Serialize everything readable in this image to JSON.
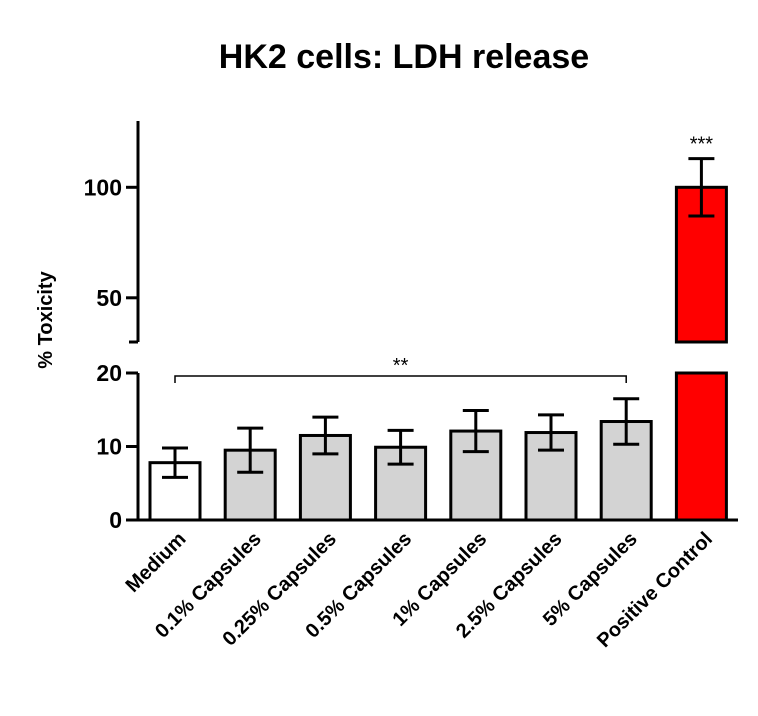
{
  "chart_data": {
    "type": "bar",
    "title": "HK2 cells: LDH release",
    "ylabel": "% Toxicity",
    "xlabel": "",
    "categories": [
      "Medium",
      "0.1% Capsules",
      "0.25% Capsules",
      "0.5% Capsules",
      "1% Capsules",
      "2.5% Capsules",
      "5% Capsules",
      "Positive Control"
    ],
    "values": [
      7.8,
      9.5,
      11.5,
      9.9,
      12.1,
      11.9,
      13.4,
      100
    ],
    "errors": [
      2.0,
      3.0,
      2.5,
      2.3,
      2.8,
      2.4,
      3.1,
      13
    ],
    "bar_colors": [
      "#ffffff",
      "#d3d3d3",
      "#d3d3d3",
      "#d3d3d3",
      "#d3d3d3",
      "#d3d3d3",
      "#d3d3d3",
      "#ff0000"
    ],
    "broken_y_axis": true,
    "y_lower_segment": {
      "range": [
        0,
        20
      ],
      "ticks": [
        0,
        10,
        20
      ]
    },
    "y_upper_segment": {
      "range": [
        30,
        130
      ],
      "ticks": [
        50,
        100
      ]
    },
    "grid": false,
    "annotations": [
      {
        "text": "**",
        "type": "bracket",
        "from": "Medium",
        "to": "5% Capsules"
      },
      {
        "text": "***",
        "type": "label",
        "target": "Positive Control"
      }
    ]
  }
}
